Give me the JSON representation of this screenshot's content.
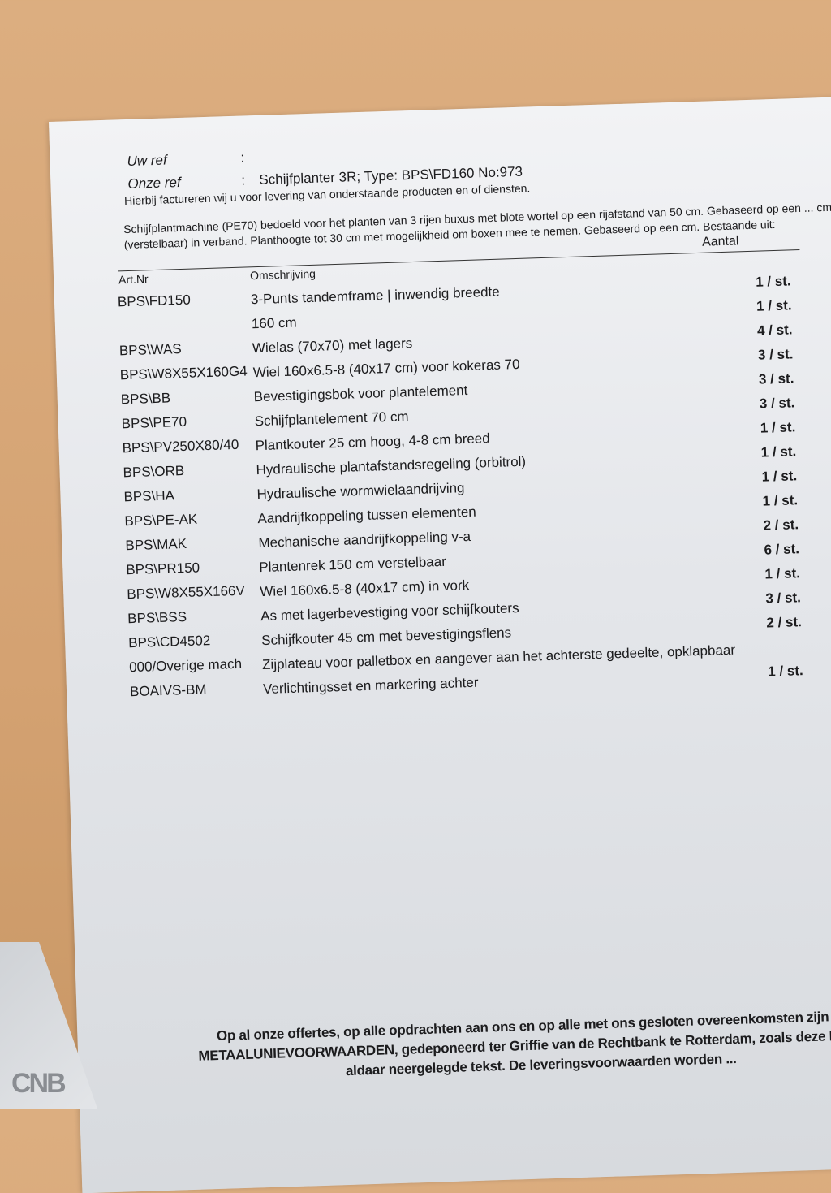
{
  "refs": {
    "uw_ref_label": "Uw ref",
    "uw_ref_value": "",
    "onze_ref_label": "Onze ref",
    "onze_ref_value": "Schijfplanter 3R; Type: BPS\\FD160 No:973",
    "separator": ":"
  },
  "intro": "Hierbij factureren wij u voor levering van onderstaande producten en of diensten.",
  "description": "Schijfplantmachine (PE70) bedoeld voor het planten van 3 rijen buxus met blote wortel op een rijafstand van 50 cm. Gebaseerd op een ... cm (verstelbaar) in verband. Planthoogte tot 30 cm met mogelijkheid om boxen mee te nemen. Gebaseerd op een cm. Bestaande uit:",
  "table": {
    "headers": {
      "art": "Art.Nr",
      "oms": "Omschrijving",
      "aantal": "Aantal"
    },
    "rows": [
      {
        "art": "BPS\\FD150",
        "oms": "3-Punts tandemframe | inwendig breedte",
        "qty": "1 / st."
      },
      {
        "art": "",
        "oms": "160 cm",
        "qty": "1 / st."
      },
      {
        "art": "BPS\\WAS",
        "oms": "Wielas (70x70) met lagers",
        "qty": "4 / st."
      },
      {
        "art": "BPS\\W8X55X160G4",
        "oms": "Wiel 160x6.5-8 (40x17 cm) voor kokeras 70",
        "qty": "3 / st."
      },
      {
        "art": "BPS\\BB",
        "oms": "Bevestigingsbok voor plantelement",
        "qty": "3 / st."
      },
      {
        "art": "BPS\\PE70",
        "oms": "Schijfplantelement 70 cm",
        "qty": "3 / st."
      },
      {
        "art": "BPS\\PV250X80/40",
        "oms": "Plantkouter 25 cm hoog, 4-8 cm breed",
        "qty": "1 / st."
      },
      {
        "art": "BPS\\ORB",
        "oms": "Hydraulische plantafstandsregeling (orbitrol)",
        "qty": "1 / st."
      },
      {
        "art": "BPS\\HA",
        "oms": "Hydraulische wormwielaandrijving",
        "qty": "1 / st."
      },
      {
        "art": "BPS\\PE-AK",
        "oms": "Aandrijfkoppeling tussen elementen",
        "qty": "1 / st."
      },
      {
        "art": "BPS\\MAK",
        "oms": "Mechanische aandrijfkoppeling v-a",
        "qty": "2 / st."
      },
      {
        "art": "BPS\\PR150",
        "oms": "Plantenrek 150 cm verstelbaar",
        "qty": "6 / st."
      },
      {
        "art": "BPS\\W8X55X166V",
        "oms": "Wiel 160x6.5-8 (40x17 cm) in vork",
        "qty": "1 / st."
      },
      {
        "art": "BPS\\BSS",
        "oms": "As met lagerbevestiging  voor schijfkouters",
        "qty": "3 / st."
      },
      {
        "art": "BPS\\CD4502",
        "oms": "Schijfkouter 45 cm met bevestigingsflens",
        "qty": "2 / st."
      },
      {
        "art": "000/Overige mach",
        "oms": "Zijplateau voor palletbox en aangever aan het achterste gedeelte, opklapbaar",
        "qty": ""
      },
      {
        "art": "BOAIVS-BM",
        "oms": "Verlichtingsset en markering achter",
        "qty": "1 / st."
      }
    ]
  },
  "footer": [
    "Op al onze offertes, op alle opdrachten aan ons en op alle met ons gesloten overeenkomsten zijn toe...",
    "METAALUNIEVOORWAARDEN, gedeponeerd ter Griffie van de Rechtbank te Rotterdam, zoals deze luiden ...",
    "aldaar neergelegde tekst. De leveringsvoorwaarden worden ..."
  ],
  "watermark": "CNB"
}
